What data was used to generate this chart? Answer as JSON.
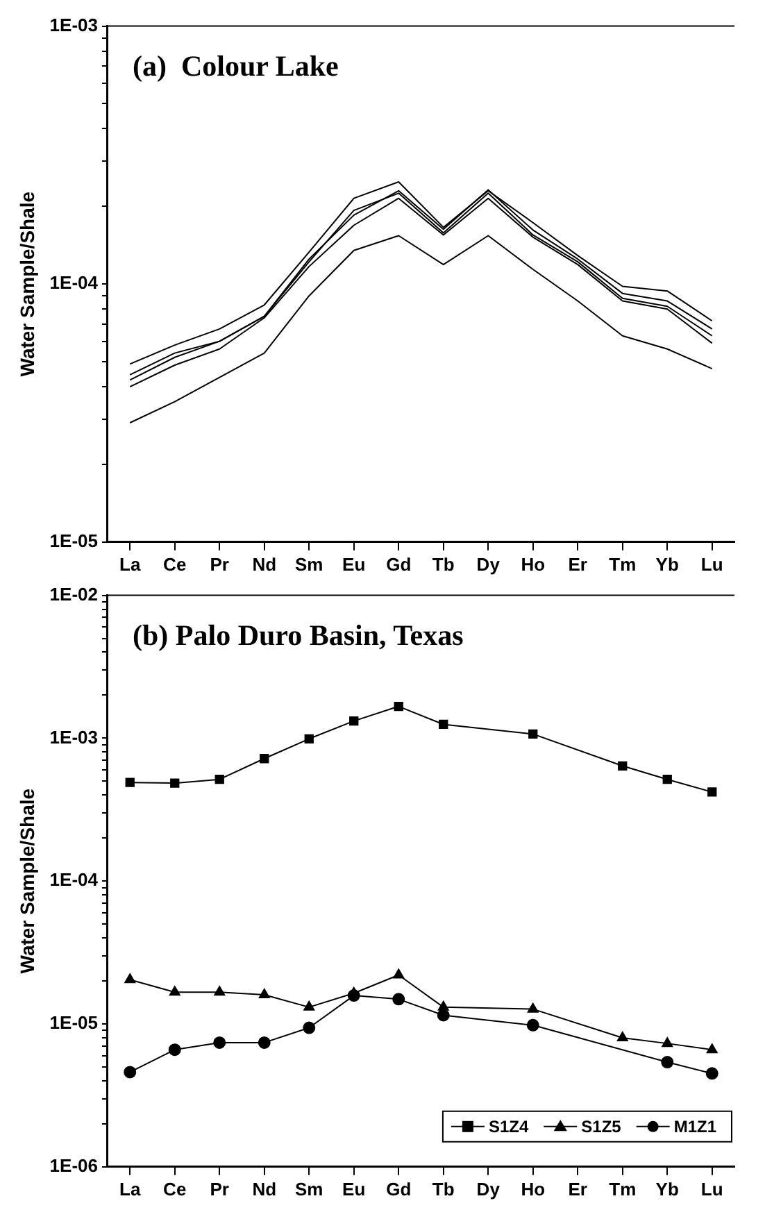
{
  "chart_data": [
    {
      "type": "line",
      "title": "(a)  Colour Lake",
      "ylabel": "Water Sample/Shale",
      "log": "y",
      "grid": false,
      "legend": false,
      "marker": "none",
      "categories": [
        "La",
        "Ce",
        "Pr",
        "Nd",
        "Sm",
        "Eu",
        "Gd",
        "Tb",
        "Dy",
        "Ho",
        "Er",
        "Tm",
        "Yb",
        "Lu"
      ],
      "ylim": [
        1e-05,
        0.001
      ],
      "yticks": [
        {
          "value": 1e-05,
          "label": "1E-05"
        },
        {
          "value": 2e-05,
          "label": null
        },
        {
          "value": 3e-05,
          "label": null
        },
        {
          "value": 4e-05,
          "label": null
        },
        {
          "value": 5e-05,
          "label": null
        },
        {
          "value": 6e-05,
          "label": null
        },
        {
          "value": 7e-05,
          "label": null
        },
        {
          "value": 8e-05,
          "label": null
        },
        {
          "value": 9e-05,
          "label": null
        },
        {
          "value": 0.0001,
          "label": "1E-04"
        },
        {
          "value": 0.0002,
          "label": null
        },
        {
          "value": 0.0003,
          "label": null
        },
        {
          "value": 0.0004,
          "label": null
        },
        {
          "value": 0.0005,
          "label": null
        },
        {
          "value": 0.0006,
          "label": null
        },
        {
          "value": 0.0007,
          "label": null
        },
        {
          "value": 0.0008,
          "label": null
        },
        {
          "value": 0.0009,
          "label": null
        },
        {
          "value": 0.001,
          "label": "1E-03"
        }
      ],
      "series": [
        {
          "color": "#000000",
          "values": [
            4.9e-05,
            5.8e-05,
            6.7e-05,
            8.3e-05,
            0.000133,
            0.000215,
            0.000249,
            0.000166,
            0.00023,
            0.000173,
            0.000129,
            9.8e-05,
            9.4e-05,
            7.2e-05
          ]
        },
        {
          "color": "#000000",
          "values": [
            4.25e-05,
            5.2e-05,
            6e-05,
            7.5e-05,
            0.000125,
            0.000185,
            0.00023,
            0.000163,
            0.000232,
            0.000162,
            0.000125,
            9.2e-05,
            8.6e-05,
            6.7e-05
          ]
        },
        {
          "color": "#000000",
          "values": [
            4.45e-05,
            5.4e-05,
            6e-05,
            7.5e-05,
            0.000122,
            0.000193,
            0.000225,
            0.000158,
            0.000225,
            0.000155,
            0.000122,
            8.8e-05,
            8.2e-05,
            6.3e-05
          ]
        },
        {
          "color": "#000000",
          "values": [
            4e-05,
            4.85e-05,
            5.6e-05,
            7.4e-05,
            0.000117,
            0.000169,
            0.000215,
            0.000155,
            0.000215,
            0.000152,
            0.000119,
            8.6e-05,
            8e-05,
            5.9e-05
          ]
        },
        {
          "color": "#000000",
          "values": [
            2.9e-05,
            3.5e-05,
            4.35e-05,
            5.4e-05,
            9e-05,
            0.000135,
            0.000154,
            0.000119,
            0.000154,
            0.000114,
            8.6e-05,
            6.3e-05,
            5.6e-05,
            4.7e-05
          ]
        }
      ]
    },
    {
      "type": "line",
      "title": "(b) Palo Duro Basin, Texas",
      "ylabel": "Water Sample/Shale",
      "log": "y",
      "grid": false,
      "legend": "bottom right",
      "categories": [
        "La",
        "Ce",
        "Pr",
        "Nd",
        "Sm",
        "Eu",
        "Gd",
        "Tb",
        "Dy",
        "Ho",
        "Er",
        "Tm",
        "Yb",
        "Lu"
      ],
      "ylim": [
        1e-06,
        0.01
      ],
      "yticks": [
        {
          "value": 1e-06,
          "label": "1E-06"
        },
        {
          "value": 2e-06,
          "label": null
        },
        {
          "value": 3e-06,
          "label": null
        },
        {
          "value": 4e-06,
          "label": null
        },
        {
          "value": 5e-06,
          "label": null
        },
        {
          "value": 6e-06,
          "label": null
        },
        {
          "value": 7e-06,
          "label": null
        },
        {
          "value": 8e-06,
          "label": null
        },
        {
          "value": 9e-06,
          "label": null
        },
        {
          "value": 1e-05,
          "label": "1E-05"
        },
        {
          "value": 2e-05,
          "label": null
        },
        {
          "value": 3e-05,
          "label": null
        },
        {
          "value": 4e-05,
          "label": null
        },
        {
          "value": 5e-05,
          "label": null
        },
        {
          "value": 6e-05,
          "label": null
        },
        {
          "value": 7e-05,
          "label": null
        },
        {
          "value": 8e-05,
          "label": null
        },
        {
          "value": 9e-05,
          "label": null
        },
        {
          "value": 0.0001,
          "label": "1E-04"
        },
        {
          "value": 0.0002,
          "label": null
        },
        {
          "value": 0.0003,
          "label": null
        },
        {
          "value": 0.0004,
          "label": null
        },
        {
          "value": 0.0005,
          "label": null
        },
        {
          "value": 0.0006,
          "label": null
        },
        {
          "value": 0.0007,
          "label": null
        },
        {
          "value": 0.0008,
          "label": null
        },
        {
          "value": 0.0009,
          "label": null
        },
        {
          "value": 0.001,
          "label": "1E-03"
        },
        {
          "value": 0.002,
          "label": null
        },
        {
          "value": 0.003,
          "label": null
        },
        {
          "value": 0.004,
          "label": null
        },
        {
          "value": 0.005,
          "label": null
        },
        {
          "value": 0.006,
          "label": null
        },
        {
          "value": 0.007,
          "label": null
        },
        {
          "value": 0.008,
          "label": null
        },
        {
          "value": 0.009,
          "label": null
        },
        {
          "value": 0.01,
          "label": "1E-02"
        }
      ],
      "series": [
        {
          "name": "S1Z4",
          "color": "#000000",
          "marker": "square",
          "values": [
            0.00049,
            0.000485,
            0.000515,
            0.00072,
            0.00099,
            0.00132,
            0.00167,
            0.00125,
            null,
            0.00107,
            null,
            0.00064,
            0.000515,
            0.00042
          ]
        },
        {
          "name": "S1Z5",
          "color": "#000000",
          "marker": "triangle",
          "values": [
            2.04e-05,
            1.67e-05,
            1.67e-05,
            1.6e-05,
            1.31e-05,
            1.64e-05,
            2.2e-05,
            1.31e-05,
            null,
            1.27e-05,
            null,
            8e-06,
            7.3e-06,
            6.6e-06
          ]
        },
        {
          "name": "M1Z1",
          "color": "#000000",
          "marker": "circle",
          "values": [
            4.6e-06,
            6.6e-06,
            7.4e-06,
            7.4e-06,
            9.4e-06,
            1.58e-05,
            1.49e-05,
            1.15e-05,
            null,
            9.8e-06,
            null,
            null,
            5.4e-06,
            4.5e-06
          ]
        }
      ]
    }
  ]
}
